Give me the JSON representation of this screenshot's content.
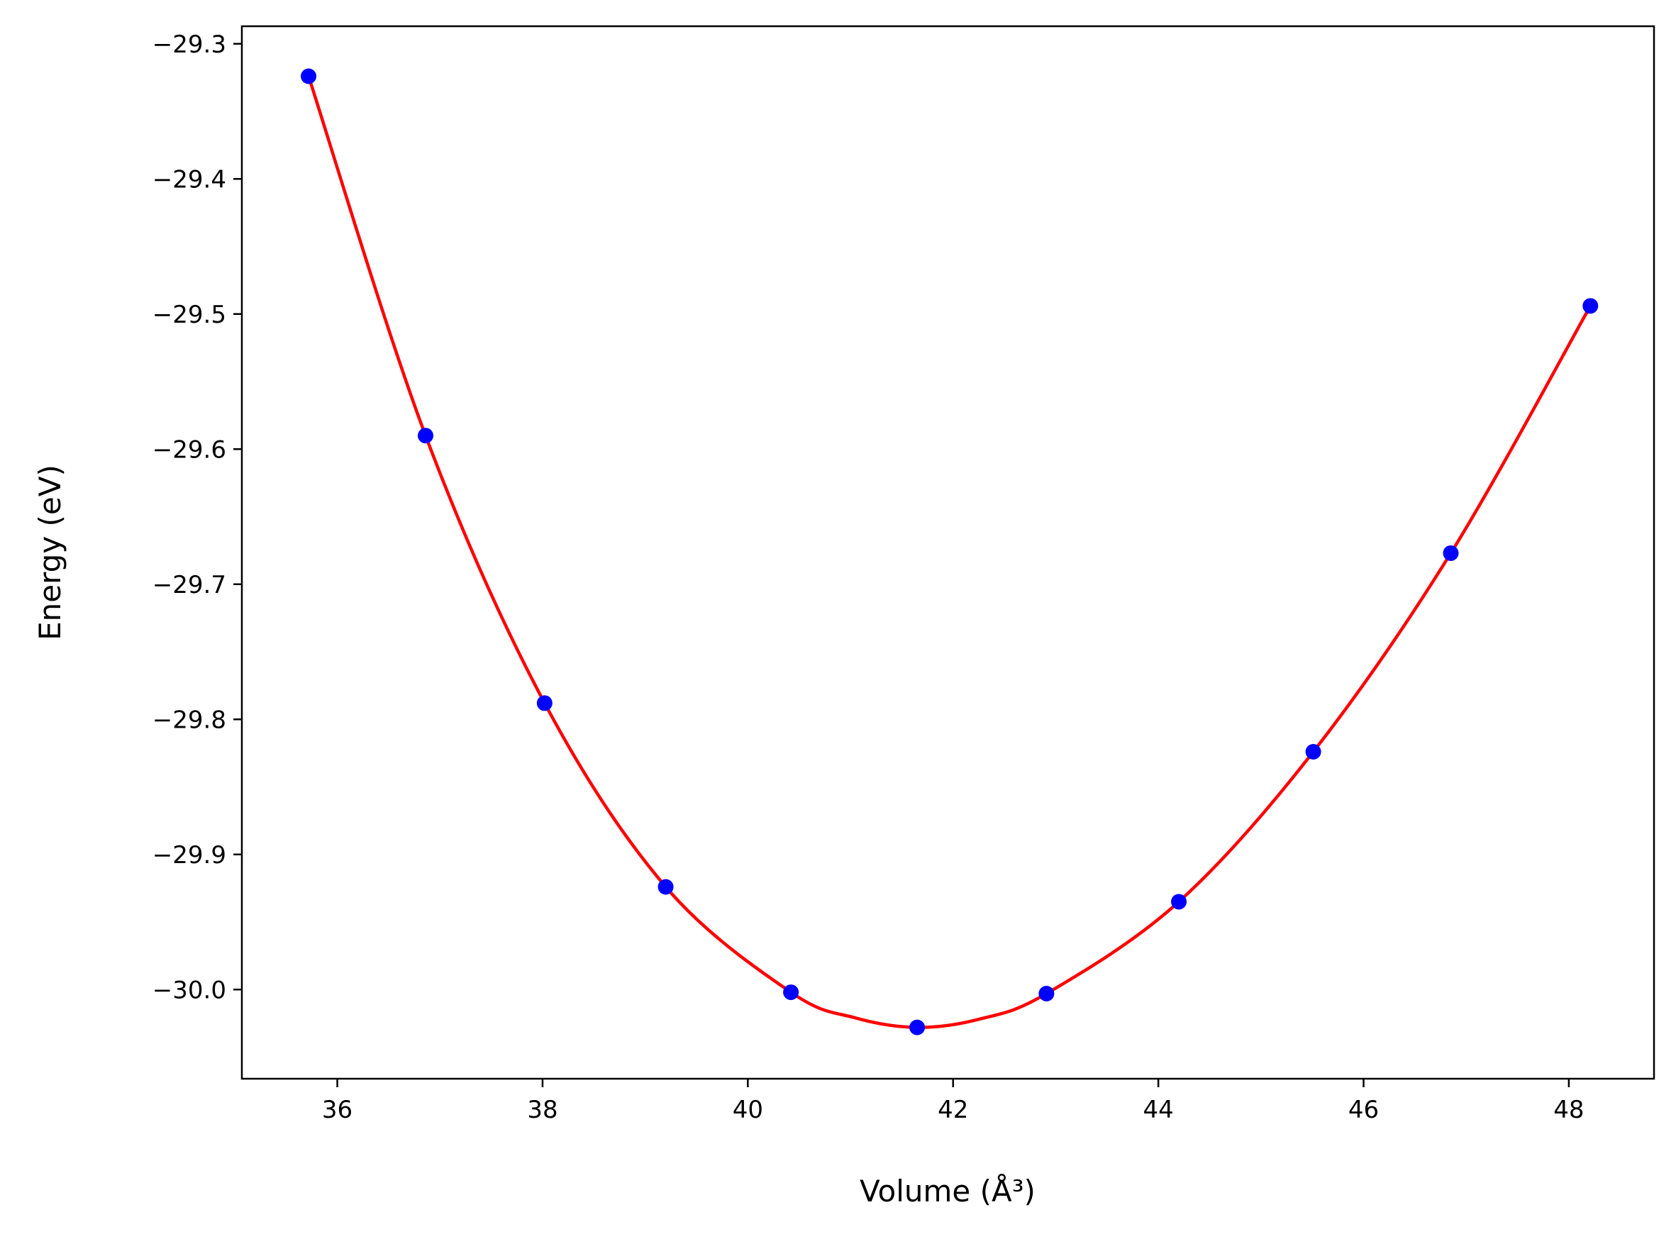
{
  "chart_data": {
    "type": "scatter",
    "title": "",
    "xlabel": "Volume (Å³)",
    "ylabel": "Energy (eV)",
    "xlim": [
      35.07,
      48.83
    ],
    "ylim": [
      -30.066,
      -29.287
    ],
    "x_ticks": [
      36,
      38,
      40,
      42,
      44,
      46,
      48
    ],
    "y_ticks": [
      -30.0,
      -29.9,
      -29.8,
      -29.7,
      -29.6,
      -29.5,
      -29.4,
      -29.3
    ],
    "grid": false,
    "legend": "none",
    "series": [
      {
        "kind": "points",
        "color": "#0000ff",
        "x": [
          35.72,
          36.86,
          38.02,
          39.2,
          40.42,
          41.65,
          42.91,
          44.2,
          45.51,
          46.85,
          48.21
        ],
        "y": [
          -29.324,
          -29.59,
          -29.788,
          -29.924,
          -30.002,
          -30.028,
          -30.003,
          -29.935,
          -29.824,
          -29.677,
          -29.494
        ]
      },
      {
        "kind": "fit-curve",
        "color": "#ff0000",
        "x": [
          35.72,
          36.86,
          38.02,
          39.2,
          40.42,
          41.05,
          41.65,
          42.25,
          42.91,
          44.2,
          45.51,
          46.85,
          48.21
        ],
        "y": [
          -29.324,
          -29.59,
          -29.788,
          -29.924,
          -30.002,
          -30.021,
          -30.028,
          -30.022,
          -30.003,
          -29.935,
          -29.824,
          -29.677,
          -29.494
        ]
      }
    ]
  }
}
